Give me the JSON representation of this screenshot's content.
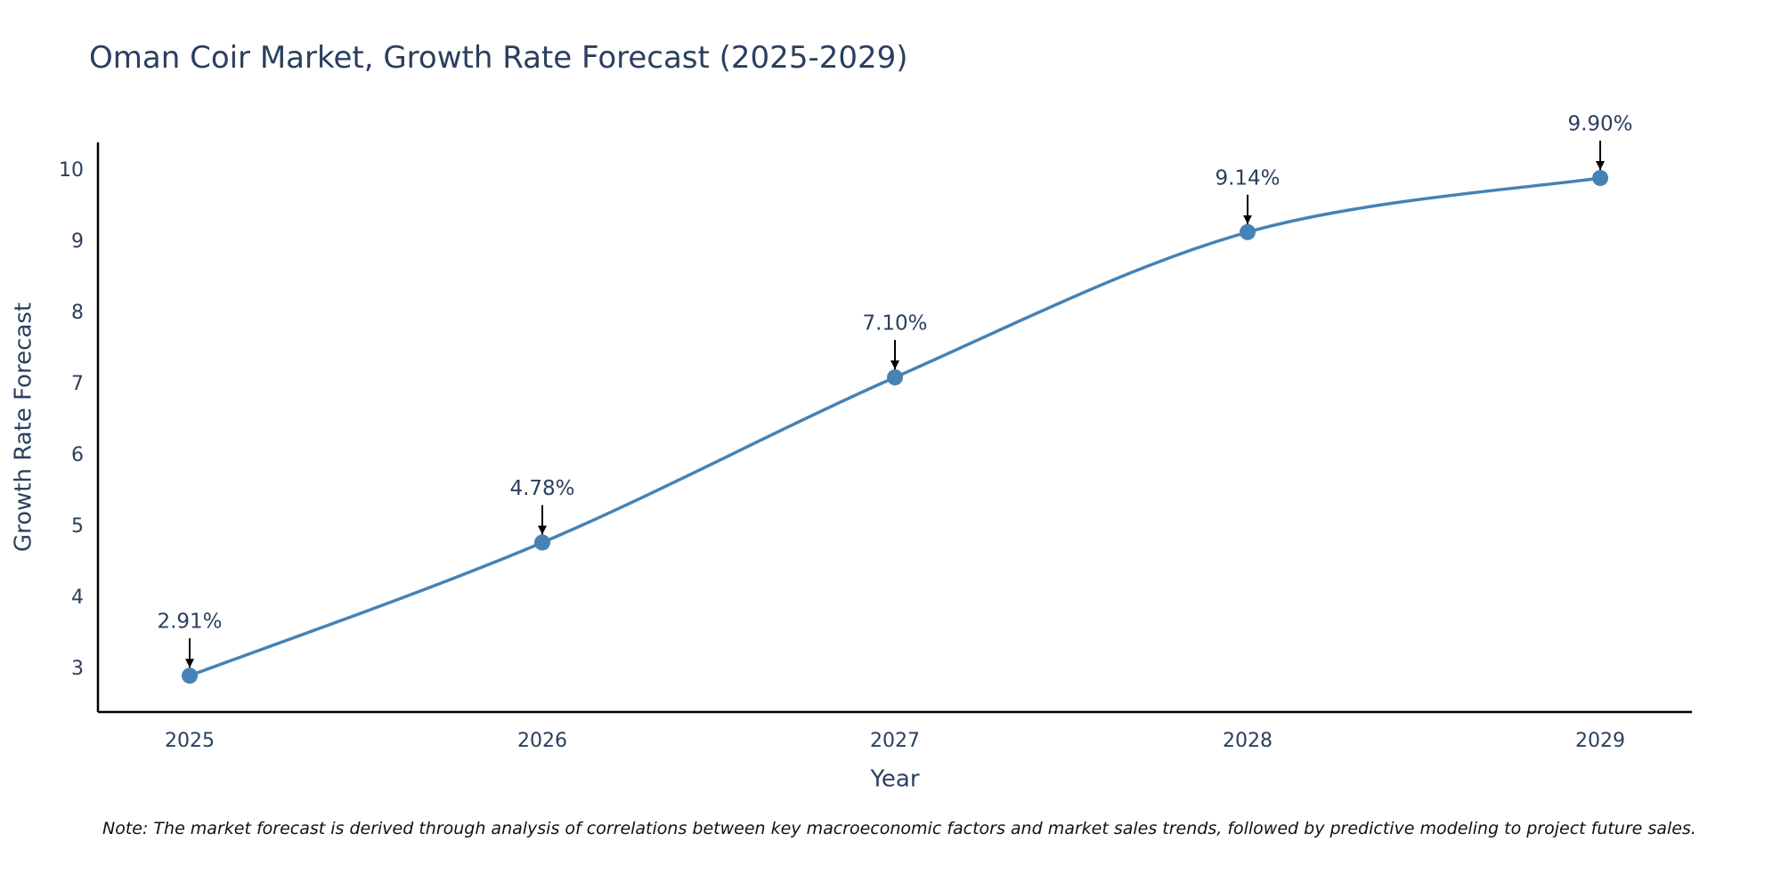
{
  "chart_data": {
    "type": "line",
    "title": "Oman Coir Market, Growth Rate Forecast (2025-2029)",
    "xlabel": "Year",
    "ylabel": "Growth Rate Forecast",
    "x": [
      "2025",
      "2026",
      "2027",
      "2028",
      "2029"
    ],
    "series": [
      {
        "name": "Growth Rate Forecast",
        "values": [
          2.91,
          4.78,
          7.1,
          9.14,
          9.9
        ],
        "labels": [
          "2.91%",
          "4.78%",
          "7.10%",
          "9.14%",
          "9.90%"
        ]
      }
    ],
    "yticks": [
      3,
      4,
      5,
      6,
      7,
      8,
      9,
      10
    ],
    "ylim": [
      2.4,
      10.4
    ],
    "grid": false,
    "line_shape": "spline",
    "line_color": "#4682b4",
    "marker_color": "#4682b4",
    "arrow_color": "#000000",
    "text_color": "#2a3f5f",
    "note": "Note: The market forecast is derived through analysis of correlations between key macroeconomic factors and market sales trends, followed by predictive modeling to project future sales."
  }
}
